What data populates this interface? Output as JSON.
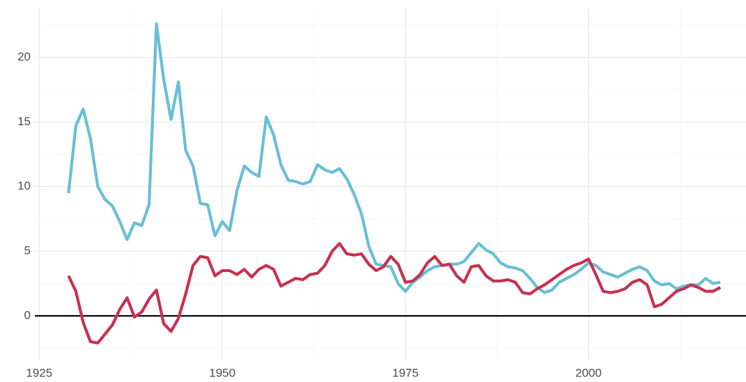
{
  "chart_data": {
    "type": "line",
    "x": [
      1929,
      1930,
      1931,
      1932,
      1933,
      1934,
      1935,
      1936,
      1937,
      1938,
      1939,
      1940,
      1941,
      1942,
      1943,
      1944,
      1945,
      1946,
      1947,
      1948,
      1949,
      1950,
      1951,
      1952,
      1953,
      1954,
      1955,
      1956,
      1957,
      1958,
      1959,
      1960,
      1961,
      1962,
      1963,
      1964,
      1965,
      1966,
      1967,
      1968,
      1969,
      1970,
      1971,
      1972,
      1973,
      1974,
      1975,
      1976,
      1977,
      1978,
      1979,
      1980,
      1981,
      1982,
      1983,
      1984,
      1985,
      1986,
      1987,
      1988,
      1989,
      1990,
      1991,
      1992,
      1993,
      1994,
      1995,
      1996,
      1997,
      1998,
      1999,
      2000,
      2001,
      2002,
      2003,
      2004,
      2005,
      2006,
      2007,
      2008,
      2009,
      2010,
      2011,
      2012,
      2013,
      2014,
      2015,
      2016,
      2017,
      2018
    ],
    "series": [
      {
        "color": "#67bfd5",
        "values": [
          9.5,
          14.7,
          16.0,
          13.7,
          10.0,
          9.0,
          8.5,
          7.3,
          5.9,
          7.2,
          7.0,
          8.6,
          22.6,
          18.3,
          15.2,
          18.1,
          12.8,
          11.6,
          8.7,
          8.6,
          6.2,
          7.3,
          6.6,
          9.7,
          11.6,
          11.1,
          10.8,
          15.4,
          14.0,
          11.7,
          10.5,
          10.4,
          10.2,
          10.4,
          11.7,
          11.3,
          11.1,
          11.4,
          10.6,
          9.4,
          7.9,
          5.4,
          4.0,
          3.9,
          3.8,
          2.5,
          1.9,
          2.6,
          3.0,
          3.5,
          3.8,
          3.9,
          4.0,
          4.0,
          4.2,
          4.9,
          5.6,
          5.1,
          4.8,
          4.1,
          3.8,
          3.7,
          3.5,
          2.9,
          2.2,
          1.8,
          2.0,
          2.6,
          2.9,
          3.2,
          3.6,
          4.1,
          3.9,
          3.4,
          3.2,
          3.0,
          3.3,
          3.6,
          3.8,
          3.5,
          2.7,
          2.4,
          2.5,
          2.1,
          2.3,
          2.4,
          2.4,
          2.9,
          2.5,
          2.6
        ]
      },
      {
        "color": "#c8304f",
        "values": [
          3.1,
          1.9,
          -0.5,
          -2.0,
          -2.1,
          -1.4,
          -0.7,
          0.5,
          1.4,
          -0.1,
          0.3,
          1.3,
          2.0,
          -0.6,
          -1.2,
          -0.2,
          1.7,
          3.9,
          4.6,
          4.5,
          3.1,
          3.5,
          3.5,
          3.2,
          3.6,
          3.0,
          3.6,
          3.9,
          3.6,
          2.3,
          2.6,
          2.9,
          2.8,
          3.2,
          3.3,
          3.9,
          5.0,
          5.6,
          4.8,
          4.7,
          4.8,
          4.0,
          3.5,
          3.8,
          4.6,
          4.0,
          2.6,
          2.7,
          3.2,
          4.1,
          4.6,
          3.9,
          4.0,
          3.1,
          2.6,
          3.8,
          3.9,
          3.1,
          2.7,
          2.7,
          2.8,
          2.6,
          1.8,
          1.7,
          2.1,
          2.4,
          2.8,
          3.2,
          3.6,
          3.9,
          4.1,
          4.4,
          3.2,
          1.9,
          1.8,
          1.9,
          2.1,
          2.6,
          2.8,
          2.4,
          0.7,
          0.9,
          1.4,
          1.9,
          2.1,
          2.4,
          2.2,
          1.9,
          1.9,
          2.2
        ]
      }
    ],
    "xlim": [
      1924.4,
      2021.5
    ],
    "xticks": [
      1925,
      1950,
      1975,
      2000
    ],
    "ylim": [
      -3.45,
      23.8
    ],
    "yticks": [
      0,
      5,
      10,
      15,
      20
    ],
    "grid": true,
    "hline": 0
  }
}
